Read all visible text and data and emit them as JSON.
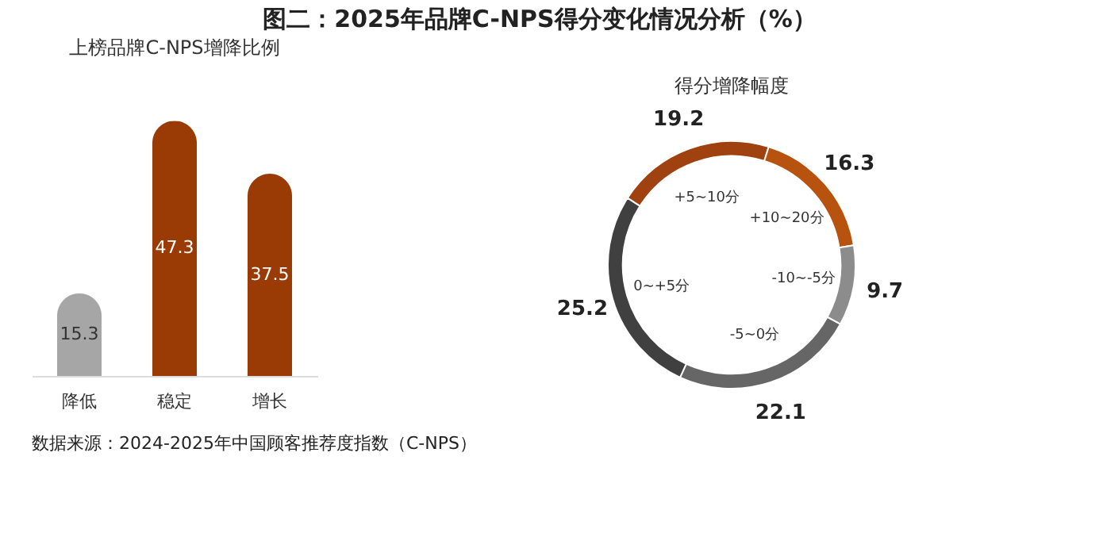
{
  "chart_data": [
    {
      "type": "bar",
      "title": "上榜品牌C-NPS增降比例",
      "categories": [
        "降低",
        "稳定",
        "增长"
      ],
      "values": [
        15.3,
        47.3,
        37.5
      ],
      "colors": [
        "#a6a6a6",
        "#9a3b06",
        "#9a3b06"
      ],
      "data_labels": true,
      "annotations": [
        "图二：2025年品牌C-NPS得分变化情况分析（%）",
        "数据来源：2024-2025年中国顾客推荐度指数（C-NPS）"
      ]
    },
    {
      "type": "donut",
      "title": "得分增降幅度",
      "categories": [
        "+5~10分",
        "+10~20分",
        "-10~-5分",
        "-5~0分",
        "0~+5分"
      ],
      "values": [
        19.2,
        16.3,
        9.7,
        22.1,
        25.2
      ],
      "colors": [
        "#a0420f",
        "#b8520f",
        "#8c8c8c",
        "#666666",
        "#404040"
      ],
      "data_labels": true
    }
  ]
}
